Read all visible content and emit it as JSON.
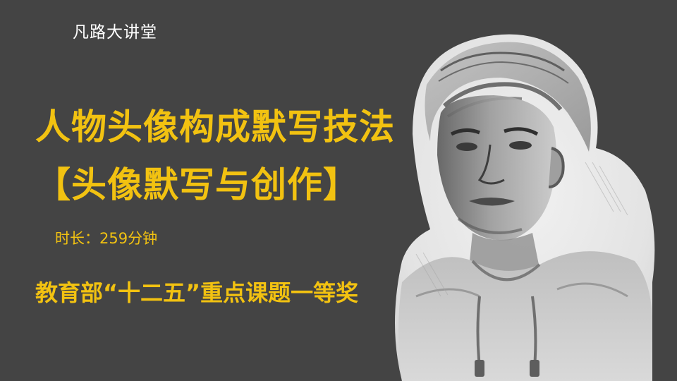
{
  "brand": "凡路大讲堂",
  "title": "人物头像构成默写技法",
  "subtitle": "【头像默写与创作】",
  "duration": "时长：259分钟",
  "award": "教育部“十二五”重点课题一等奖",
  "colors": {
    "background": "#444444",
    "accent": "#f2c211",
    "brand_text": "#ffffff"
  }
}
